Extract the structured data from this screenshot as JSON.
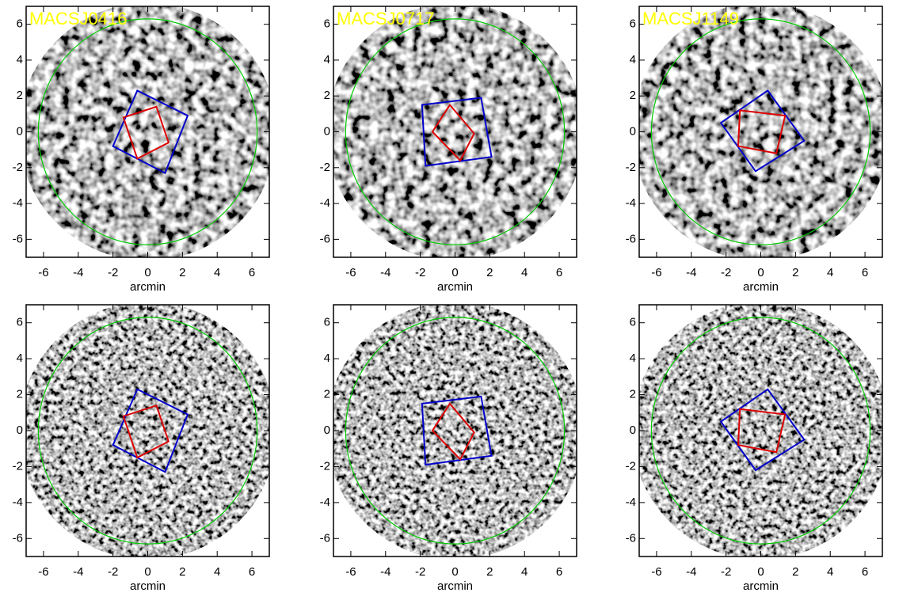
{
  "chart_data": [
    {
      "type": "image",
      "title": "MACSJ0416",
      "xlabel": "arcmin",
      "xlim": [
        -7,
        7
      ],
      "ylim": [
        -7,
        7
      ],
      "xticks": [
        -6,
        -4,
        -2,
        0,
        2,
        4,
        6
      ],
      "yticks": [
        -6,
        -4,
        -2,
        0,
        2,
        4,
        6
      ],
      "shapes": [
        {
          "color": "#00cc00",
          "center": [
            0,
            0
          ],
          "radius": 6.3
        },
        {
          "color": "#0000cc",
          "points": [
            [
              -0.6,
              2.3
            ],
            [
              2.3,
              0.9
            ],
            [
              1.0,
              -2.3
            ],
            [
              -2.0,
              -0.8
            ]
          ]
        },
        {
          "color": "#dd0000",
          "points": [
            [
              0.5,
              1.4
            ],
            [
              1.2,
              -0.6
            ],
            [
              -0.6,
              -1.5
            ],
            [
              -1.4,
              0.8
            ]
          ]
        }
      ]
    },
    {
      "type": "image",
      "title": "MACSJ0717",
      "xlabel": "arcmin",
      "xlim": [
        -7,
        7
      ],
      "ylim": [
        -7,
        7
      ],
      "xticks": [
        -6,
        -4,
        -2,
        0,
        2,
        4,
        6
      ],
      "yticks": [
        -6,
        -4,
        -2,
        0,
        2,
        4,
        6
      ],
      "shapes": [
        {
          "color": "#00cc00",
          "center": [
            0,
            0
          ],
          "radius": 6.3
        },
        {
          "color": "#0000cc",
          "points": [
            [
              -1.9,
              1.5
            ],
            [
              1.5,
              1.9
            ],
            [
              2.1,
              -1.4
            ],
            [
              -1.7,
              -1.9
            ]
          ]
        },
        {
          "color": "#dd0000",
          "points": [
            [
              -0.3,
              1.5
            ],
            [
              1.1,
              -0.1
            ],
            [
              0.3,
              -1.6
            ],
            [
              -1.3,
              0.0
            ]
          ]
        }
      ]
    },
    {
      "type": "image",
      "title": "MACSJ1149",
      "xlabel": "arcmin",
      "xlim": [
        -7,
        7
      ],
      "ylim": [
        -7,
        7
      ],
      "xticks": [
        -6,
        -4,
        -2,
        0,
        2,
        4,
        6
      ],
      "yticks": [
        -6,
        -4,
        -2,
        0,
        2,
        4,
        6
      ],
      "shapes": [
        {
          "color": "#00cc00",
          "center": [
            0,
            0
          ],
          "radius": 6.3
        },
        {
          "color": "#0000cc",
          "points": [
            [
              -2.3,
              0.5
            ],
            [
              0.4,
              2.3
            ],
            [
              2.5,
              -0.5
            ],
            [
              -0.3,
              -2.2
            ]
          ]
        },
        {
          "color": "#dd0000",
          "points": [
            [
              -1.2,
              1.2
            ],
            [
              1.4,
              0.9
            ],
            [
              0.9,
              -1.2
            ],
            [
              -1.3,
              -0.8
            ]
          ]
        }
      ]
    },
    {
      "type": "image",
      "xlabel": "arcmin",
      "xlim": [
        -7,
        7
      ],
      "ylim": [
        -7,
        7
      ],
      "xticks": [
        -6,
        -4,
        -2,
        0,
        2,
        4,
        6
      ],
      "yticks": [
        -6,
        -4,
        -2,
        0,
        2,
        4,
        6
      ],
      "shapes": [
        {
          "color": "#00cc00",
          "center": [
            0,
            0
          ],
          "radius": 6.3
        },
        {
          "color": "#0000cc",
          "points": [
            [
              -0.6,
              2.3
            ],
            [
              2.3,
              0.9
            ],
            [
              1.0,
              -2.3
            ],
            [
              -2.0,
              -0.8
            ]
          ]
        },
        {
          "color": "#dd0000",
          "points": [
            [
              0.5,
              1.4
            ],
            [
              1.2,
              -0.6
            ],
            [
              -0.6,
              -1.5
            ],
            [
              -1.4,
              0.8
            ]
          ]
        }
      ]
    },
    {
      "type": "image",
      "xlabel": "arcmin",
      "xlim": [
        -7,
        7
      ],
      "ylim": [
        -7,
        7
      ],
      "xticks": [
        -6,
        -4,
        -2,
        0,
        2,
        4,
        6
      ],
      "yticks": [
        -6,
        -4,
        -2,
        0,
        2,
        4,
        6
      ],
      "shapes": [
        {
          "color": "#00cc00",
          "center": [
            0,
            0
          ],
          "radius": 6.3
        },
        {
          "color": "#0000cc",
          "points": [
            [
              -1.9,
              1.5
            ],
            [
              1.5,
              1.9
            ],
            [
              2.1,
              -1.4
            ],
            [
              -1.7,
              -1.9
            ]
          ]
        },
        {
          "color": "#dd0000",
          "points": [
            [
              -0.3,
              1.5
            ],
            [
              1.1,
              -0.1
            ],
            [
              0.3,
              -1.6
            ],
            [
              -1.3,
              0.0
            ]
          ]
        }
      ]
    },
    {
      "type": "image",
      "xlabel": "arcmin",
      "xlim": [
        -7,
        7
      ],
      "ylim": [
        -7,
        7
      ],
      "xticks": [
        -6,
        -4,
        -2,
        0,
        2,
        4,
        6
      ],
      "yticks": [
        -6,
        -4,
        -2,
        0,
        2,
        4,
        6
      ],
      "shapes": [
        {
          "color": "#00cc00",
          "center": [
            0,
            0
          ],
          "radius": 6.3
        },
        {
          "color": "#0000cc",
          "points": [
            [
              -2.3,
              0.5
            ],
            [
              0.4,
              2.3
            ],
            [
              2.5,
              -0.5
            ],
            [
              -0.3,
              -2.2
            ]
          ]
        },
        {
          "color": "#dd0000",
          "points": [
            [
              -1.2,
              1.2
            ],
            [
              1.4,
              0.9
            ],
            [
              0.9,
              -1.2
            ],
            [
              -1.3,
              -0.8
            ]
          ]
        }
      ]
    }
  ]
}
